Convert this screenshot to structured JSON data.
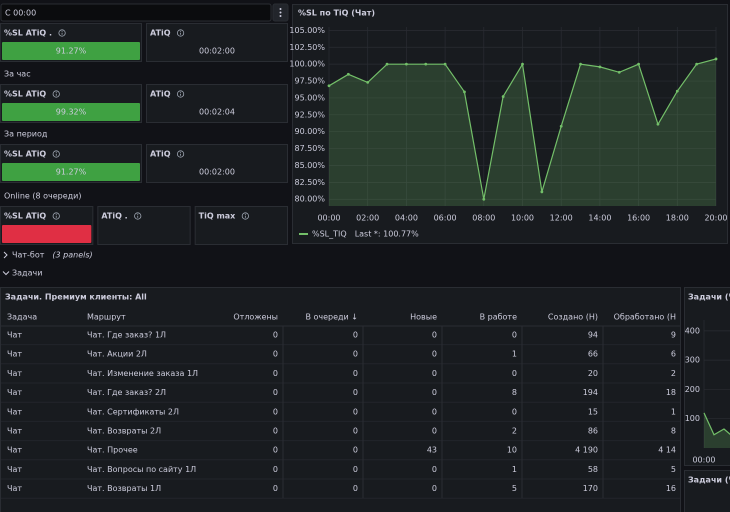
{
  "toolbar": {
    "time_from": "С 00:00"
  },
  "stat_rows": [
    {
      "panels": [
        {
          "title": "%SL ATiQ .",
          "value": "91.27%",
          "color": "#3fa142"
        },
        {
          "title": "ATiQ",
          "value": "00:02:00"
        }
      ]
    },
    {
      "heading": "За час",
      "panels": [
        {
          "title": "%SL ATiQ",
          "value": "99.32%",
          "color": "#3fa142"
        },
        {
          "title": "ATiQ",
          "value": "00:02:04"
        }
      ]
    },
    {
      "heading": "За период",
      "panels": [
        {
          "title": "%SL ATiQ",
          "value": "91.27%",
          "color": "#3fa142"
        },
        {
          "title": "ATiQ",
          "value": "00:02:00"
        }
      ]
    },
    {
      "heading": "Online (8 очереди)",
      "panels": [
        {
          "title": "%SL ATiQ",
          "color": "#e02f44"
        },
        {
          "title": "ATiQ ."
        },
        {
          "title": "TiQ max"
        }
      ]
    }
  ],
  "chart_data": [
    {
      "type": "line",
      "title": "%SL по TiQ (Чат)",
      "categories": [
        "00:00",
        null,
        "02:00",
        null,
        "04:00",
        null,
        "06:00",
        null,
        "08:00",
        null,
        "10:00",
        null,
        "12:00",
        null,
        "14:00",
        null,
        "16:00",
        null,
        "18:00",
        null,
        "20:00"
      ],
      "series": [
        {
          "name": "%SL_TIQ",
          "color": "#73bf69",
          "values": [
            96.8,
            98.5,
            97.3,
            100,
            100,
            100,
            100,
            95.9,
            80,
            95.2,
            100,
            81.1,
            90.8,
            100,
            99.6,
            98.8,
            100,
            91.1,
            96,
            100,
            100.77
          ]
        }
      ],
      "ylim": [
        79,
        105.5
      ],
      "yticks": [
        {
          "value": 80,
          "label": "80.00%"
        },
        {
          "value": 82.5,
          "label": "82.50%"
        },
        {
          "value": 85,
          "label": "85.00%"
        },
        {
          "value": 87.5,
          "label": "87.50%"
        },
        {
          "value": 90,
          "label": "90.00%"
        },
        {
          "value": 92.5,
          "label": "92.50%"
        },
        {
          "value": 95,
          "label": "95.00%"
        },
        {
          "value": 97.5,
          "label": "97.50%"
        },
        {
          "value": 100,
          "label": "100.00%"
        },
        {
          "value": 102.5,
          "label": "102.50%"
        },
        {
          "value": 105,
          "label": "105.00%"
        }
      ],
      "grid": true,
      "legend_text": "Last *: 100.77%"
    },
    {
      "type": "line",
      "title": "Задачи (Ча",
      "categories": [
        "00:00",
        null,
        null,
        null
      ],
      "series": [
        {
          "color": "#73bf69",
          "values": [
            120,
            45,
            65,
            35
          ]
        }
      ],
      "ylim": [
        0,
        437
      ],
      "yticks": [
        100,
        200,
        300,
        400
      ],
      "grid": true
    }
  ],
  "sections": [
    {
      "title": "Чат-бот",
      "note": "(3 panels)"
    },
    {
      "title": "Задачи"
    }
  ],
  "table": {
    "title": "Задачи. Премиум клиенты: All",
    "columns": [
      "Задача",
      "Маршрут",
      "Отложены",
      "В очереди ↓",
      "Новые",
      "В работе",
      "Создано (Н)",
      "Обработано (Н"
    ],
    "rows": [
      [
        "Чат",
        "Чат. Где заказ? 1Л",
        "0",
        "0",
        "0",
        "0",
        "94",
        "9"
      ],
      [
        "Чат",
        "Чат. Акции 2Л",
        "0",
        "0",
        "0",
        "1",
        "66",
        "6"
      ],
      [
        "Чат",
        "Чат. Изменение заказа 1Л",
        "0",
        "0",
        "0",
        "0",
        "20",
        "2"
      ],
      [
        "Чат",
        "Чат. Где заказ? 2Л",
        "0",
        "0",
        "0",
        "8",
        "194",
        "18"
      ],
      [
        "Чат",
        "Чат. Сертификаты 2Л",
        "0",
        "0",
        "0",
        "0",
        "15",
        "1"
      ],
      [
        "Чат",
        "Чат. Возвраты 2Л",
        "0",
        "0",
        "0",
        "2",
        "86",
        "8"
      ],
      [
        "Чат",
        "Чат. Прочее",
        "0",
        "0",
        "43",
        "10",
        "4 190",
        "4 14"
      ],
      [
        "Чат",
        "Чат. Вопросы по сайту 1Л",
        "0",
        "0",
        "0",
        "1",
        "58",
        "5"
      ],
      [
        "Чат",
        "Чат. Возвраты 1Л",
        "0",
        "0",
        "0",
        "5",
        "170",
        "16"
      ]
    ]
  },
  "tail_panel": {
    "title": "Задачи (Ча"
  }
}
